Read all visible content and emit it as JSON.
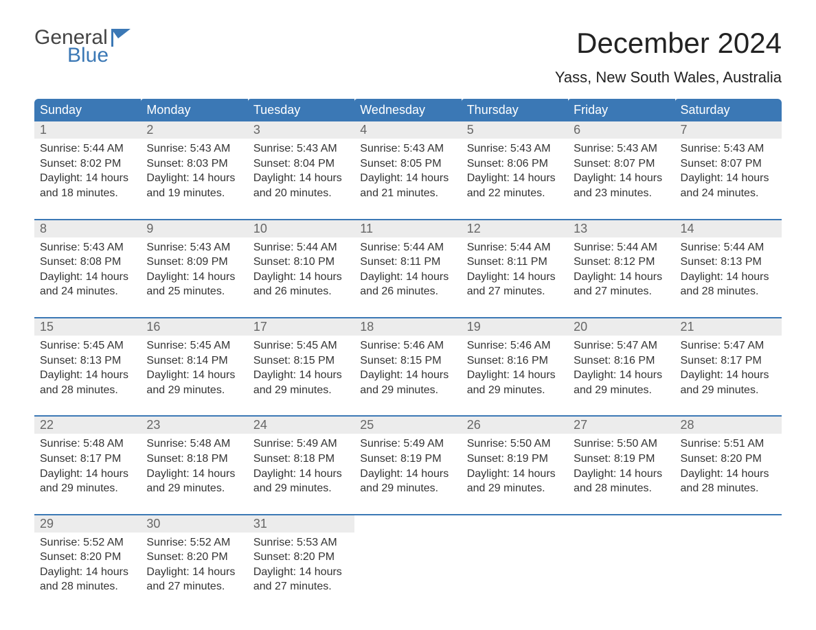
{
  "logo": {
    "top": "General",
    "bottom": "Blue",
    "icon_color": "#3b78b5"
  },
  "title": "December 2024",
  "location": "Yass, New South Wales, Australia",
  "header_bg": "#3b78b5",
  "daynum_bg": "#ececec",
  "week_border_color": "#3b78b5",
  "weekdays": [
    "Sunday",
    "Monday",
    "Tuesday",
    "Wednesday",
    "Thursday",
    "Friday",
    "Saturday"
  ],
  "weeks": [
    [
      {
        "n": "1",
        "sr": "5:44 AM",
        "ss": "8:02 PM",
        "dl": "14 hours and 18 minutes."
      },
      {
        "n": "2",
        "sr": "5:43 AM",
        "ss": "8:03 PM",
        "dl": "14 hours and 19 minutes."
      },
      {
        "n": "3",
        "sr": "5:43 AM",
        "ss": "8:04 PM",
        "dl": "14 hours and 20 minutes."
      },
      {
        "n": "4",
        "sr": "5:43 AM",
        "ss": "8:05 PM",
        "dl": "14 hours and 21 minutes."
      },
      {
        "n": "5",
        "sr": "5:43 AM",
        "ss": "8:06 PM",
        "dl": "14 hours and 22 minutes."
      },
      {
        "n": "6",
        "sr": "5:43 AM",
        "ss": "8:07 PM",
        "dl": "14 hours and 23 minutes."
      },
      {
        "n": "7",
        "sr": "5:43 AM",
        "ss": "8:07 PM",
        "dl": "14 hours and 24 minutes."
      }
    ],
    [
      {
        "n": "8",
        "sr": "5:43 AM",
        "ss": "8:08 PM",
        "dl": "14 hours and 24 minutes."
      },
      {
        "n": "9",
        "sr": "5:43 AM",
        "ss": "8:09 PM",
        "dl": "14 hours and 25 minutes."
      },
      {
        "n": "10",
        "sr": "5:44 AM",
        "ss": "8:10 PM",
        "dl": "14 hours and 26 minutes."
      },
      {
        "n": "11",
        "sr": "5:44 AM",
        "ss": "8:11 PM",
        "dl": "14 hours and 26 minutes."
      },
      {
        "n": "12",
        "sr": "5:44 AM",
        "ss": "8:11 PM",
        "dl": "14 hours and 27 minutes."
      },
      {
        "n": "13",
        "sr": "5:44 AM",
        "ss": "8:12 PM",
        "dl": "14 hours and 27 minutes."
      },
      {
        "n": "14",
        "sr": "5:44 AM",
        "ss": "8:13 PM",
        "dl": "14 hours and 28 minutes."
      }
    ],
    [
      {
        "n": "15",
        "sr": "5:45 AM",
        "ss": "8:13 PM",
        "dl": "14 hours and 28 minutes."
      },
      {
        "n": "16",
        "sr": "5:45 AM",
        "ss": "8:14 PM",
        "dl": "14 hours and 29 minutes."
      },
      {
        "n": "17",
        "sr": "5:45 AM",
        "ss": "8:15 PM",
        "dl": "14 hours and 29 minutes."
      },
      {
        "n": "18",
        "sr": "5:46 AM",
        "ss": "8:15 PM",
        "dl": "14 hours and 29 minutes."
      },
      {
        "n": "19",
        "sr": "5:46 AM",
        "ss": "8:16 PM",
        "dl": "14 hours and 29 minutes."
      },
      {
        "n": "20",
        "sr": "5:47 AM",
        "ss": "8:16 PM",
        "dl": "14 hours and 29 minutes."
      },
      {
        "n": "21",
        "sr": "5:47 AM",
        "ss": "8:17 PM",
        "dl": "14 hours and 29 minutes."
      }
    ],
    [
      {
        "n": "22",
        "sr": "5:48 AM",
        "ss": "8:17 PM",
        "dl": "14 hours and 29 minutes."
      },
      {
        "n": "23",
        "sr": "5:48 AM",
        "ss": "8:18 PM",
        "dl": "14 hours and 29 minutes."
      },
      {
        "n": "24",
        "sr": "5:49 AM",
        "ss": "8:18 PM",
        "dl": "14 hours and 29 minutes."
      },
      {
        "n": "25",
        "sr": "5:49 AM",
        "ss": "8:19 PM",
        "dl": "14 hours and 29 minutes."
      },
      {
        "n": "26",
        "sr": "5:50 AM",
        "ss": "8:19 PM",
        "dl": "14 hours and 29 minutes."
      },
      {
        "n": "27",
        "sr": "5:50 AM",
        "ss": "8:19 PM",
        "dl": "14 hours and 28 minutes."
      },
      {
        "n": "28",
        "sr": "5:51 AM",
        "ss": "8:20 PM",
        "dl": "14 hours and 28 minutes."
      }
    ],
    [
      {
        "n": "29",
        "sr": "5:52 AM",
        "ss": "8:20 PM",
        "dl": "14 hours and 28 minutes."
      },
      {
        "n": "30",
        "sr": "5:52 AM",
        "ss": "8:20 PM",
        "dl": "14 hours and 27 minutes."
      },
      {
        "n": "31",
        "sr": "5:53 AM",
        "ss": "8:20 PM",
        "dl": "14 hours and 27 minutes."
      },
      null,
      null,
      null,
      null
    ]
  ],
  "labels": {
    "sunrise": "Sunrise: ",
    "sunset": "Sunset: ",
    "daylight": "Daylight: "
  }
}
